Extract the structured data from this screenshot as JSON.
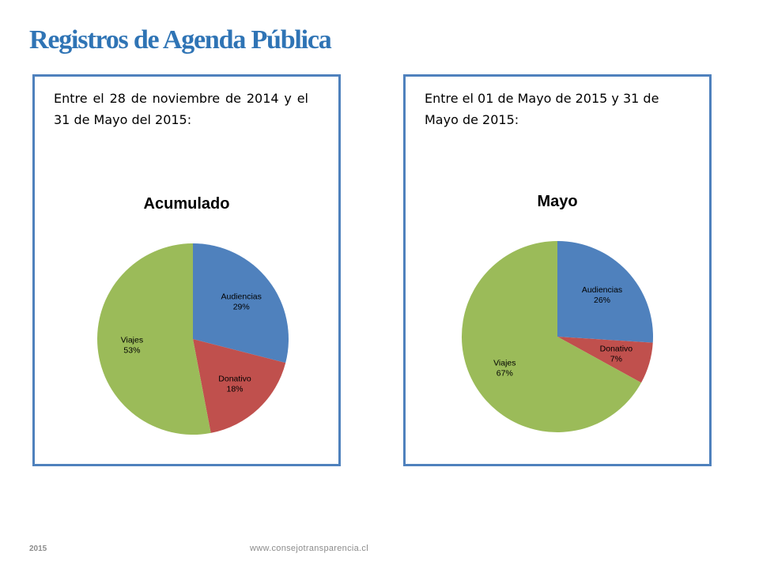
{
  "slide": {
    "title": "Registros de Agenda Pública",
    "footer_year": "2015",
    "footer_url": "www.consejotransparencia.cl"
  },
  "panels": [
    {
      "caption": "Entre el 28 de noviembre de 2014 y el 31 de Mayo del 2015:"
    },
    {
      "caption": "Entre el 01 de Mayo de 2015 y 31 de Mayo de 2015:"
    }
  ],
  "chart_data": [
    {
      "type": "pie",
      "title": "Acumulado",
      "categories": [
        "Audiencias",
        "Donativo",
        "Viajes"
      ],
      "values": [
        29,
        18,
        53
      ],
      "value_labels": [
        "29%",
        "18%",
        "53%"
      ],
      "colors": [
        "#4f81bd",
        "#c0504d",
        "#9bbb59"
      ],
      "legend": "none"
    },
    {
      "type": "pie",
      "title": "Mayo",
      "categories": [
        "Audiencias",
        "Donativo",
        "Viajes"
      ],
      "values": [
        26,
        7,
        67
      ],
      "value_labels": [
        "26%",
        "7%",
        "67%"
      ],
      "colors": [
        "#4f81bd",
        "#c0504d",
        "#9bbb59"
      ],
      "legend": "none"
    }
  ]
}
